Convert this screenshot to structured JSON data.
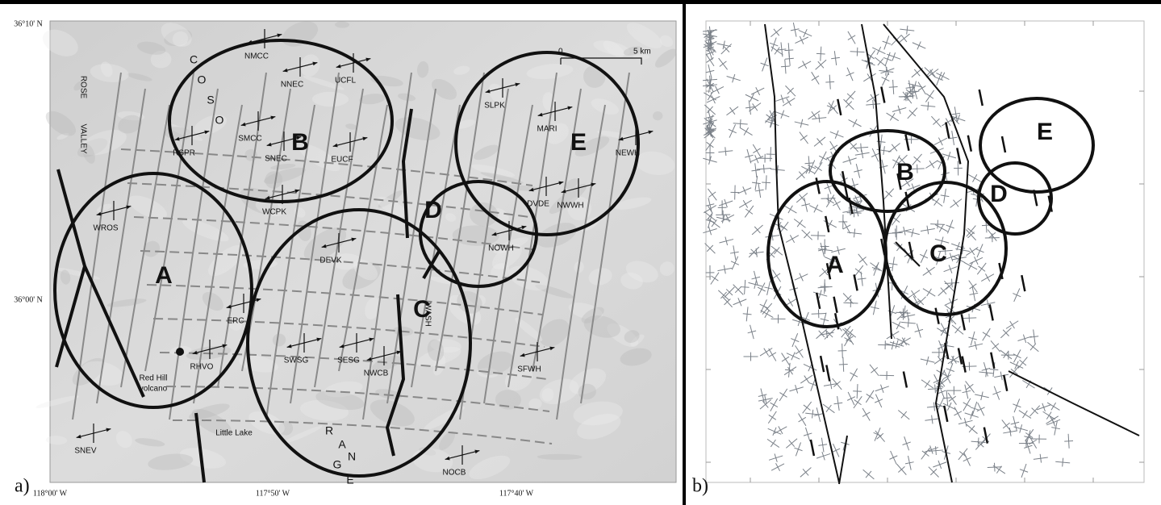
{
  "panel_a": {
    "label": "a)",
    "lat_labels": [
      "36°10' N",
      "36°00' N"
    ],
    "lon_labels": [
      "118°00' W",
      "117°50' W",
      "117°40' W"
    ],
    "scale": {
      "zero": "0",
      "length": "5 km"
    },
    "circles": [
      "A",
      "B",
      "C",
      "D",
      "E"
    ],
    "range_letters_coso": [
      "C",
      "O",
      "S",
      "O"
    ],
    "range_letters_range": [
      "R",
      "A",
      "N",
      "G",
      "E"
    ],
    "places": [
      "ROSE",
      "VALLEY",
      "WASH",
      "Red Hill",
      "volcano",
      "Little Lake"
    ],
    "stations": [
      "NMCC",
      "NNEC",
      "UCFL",
      "RSPR",
      "SMCC",
      "SNEC",
      "EUCF",
      "WCPK",
      "WROS",
      "DEVK",
      "SWSG",
      "SESG",
      "ERC",
      "RHVO",
      "SNEV",
      "NWCB",
      "NOCB",
      "SFWH",
      "NOWH",
      "DVDE",
      "NWWH",
      "SLPK",
      "MARI",
      "NEWH"
    ]
  },
  "panel_b": {
    "label": "b)",
    "circles": [
      "A",
      "B",
      "C",
      "D",
      "E"
    ]
  }
}
